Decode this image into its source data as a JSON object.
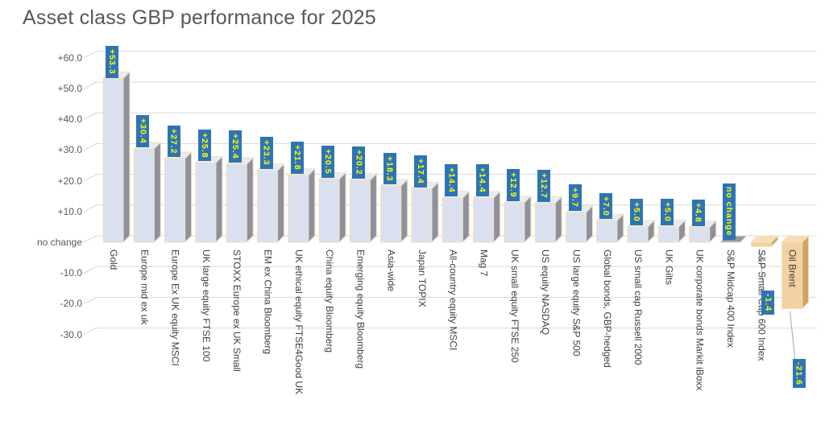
{
  "chart_data": {
    "type": "bar",
    "title": "Asset class GBP performance for 2025",
    "xlabel": "",
    "ylabel": "",
    "ylim": [
      -30,
      65
    ],
    "grid": true,
    "legend": false,
    "value_label_style": "rotated blue box with yellow text",
    "categories": [
      "Gold",
      "Europe mid ex uk",
      "Europe Ex UK equity MSCI",
      "UK large equity FTSE 100",
      "STOXX Europe ex UK Small",
      "EM ex China Bloomberg",
      "UK ethical equity FTSE4Good UK",
      "China equity Bloomberg",
      "Emerging equity Bloomberg",
      "Asia-wide",
      "Japan TOPIX",
      "All-country equity MSCI",
      "Mag 7",
      "UK small equity FTSE 250",
      "US equity NASDAQ",
      "US large equity S&P 500",
      "Global bonds, GBP-hedged",
      "US small cap Russell 2000",
      "UK Gilts",
      "UK corporate bonds Markit iBoxx",
      "S&P Midcap 400 Index",
      "S&P Small Cap 600 Index",
      "Oil Brent"
    ],
    "values": [
      53.3,
      30.4,
      27.2,
      25.8,
      25.4,
      23.3,
      21.8,
      20.5,
      20.2,
      18.3,
      17.4,
      14.4,
      14.4,
      12.9,
      12.7,
      9.7,
      7.0,
      5.0,
      5.0,
      4.8,
      0,
      -1.4,
      -21.6
    ],
    "value_labels": [
      "+53.3",
      "+30.4",
      "+27.2",
      "+25.8",
      "+25.4",
      "+23.3",
      "+21.8",
      "+20.5",
      "+20.2",
      "+18.3",
      "+17.4",
      "+14.4",
      "+14.4",
      "+12.9",
      "+12.7",
      "+9.7",
      "+7.0",
      "+5.0",
      "+5.0",
      "+4.8",
      "no change",
      "-1.4",
      "-21.6"
    ],
    "y_axis": {
      "ticks": [
        {
          "label": "+60.0",
          "value": 60
        },
        {
          "label": "+50.0",
          "value": 50
        },
        {
          "label": "+40.0",
          "value": 40
        },
        {
          "label": "+30.0",
          "value": 30
        },
        {
          "label": "+20.0",
          "value": 20
        },
        {
          "label": "+10.0",
          "value": 10
        },
        {
          "label": "no change",
          "value": 0
        },
        {
          "label": "-10.0",
          "value": -10
        },
        {
          "label": "-20.0",
          "value": -20
        },
        {
          "label": "-30.0",
          "value": -30
        }
      ]
    },
    "colors": {
      "positive_front": "#dbe0f1",
      "positive_side": "#8e90a0",
      "positive_top": "#e8ebf7",
      "negative_front": "#f3d1a2",
      "negative_side": "#cfa468",
      "negative_top": "#f6ddb8",
      "zero_top": "#9099ad",
      "bar_outline": "#f0e2b4",
      "label_bg": "#2e74b5",
      "label_text": "#ffff00",
      "gridline": "#d9d9d9",
      "leader_line": "#a6a6a6",
      "axis_text": "#595959",
      "category_text": "#404040",
      "title_text": "#575757"
    }
  }
}
